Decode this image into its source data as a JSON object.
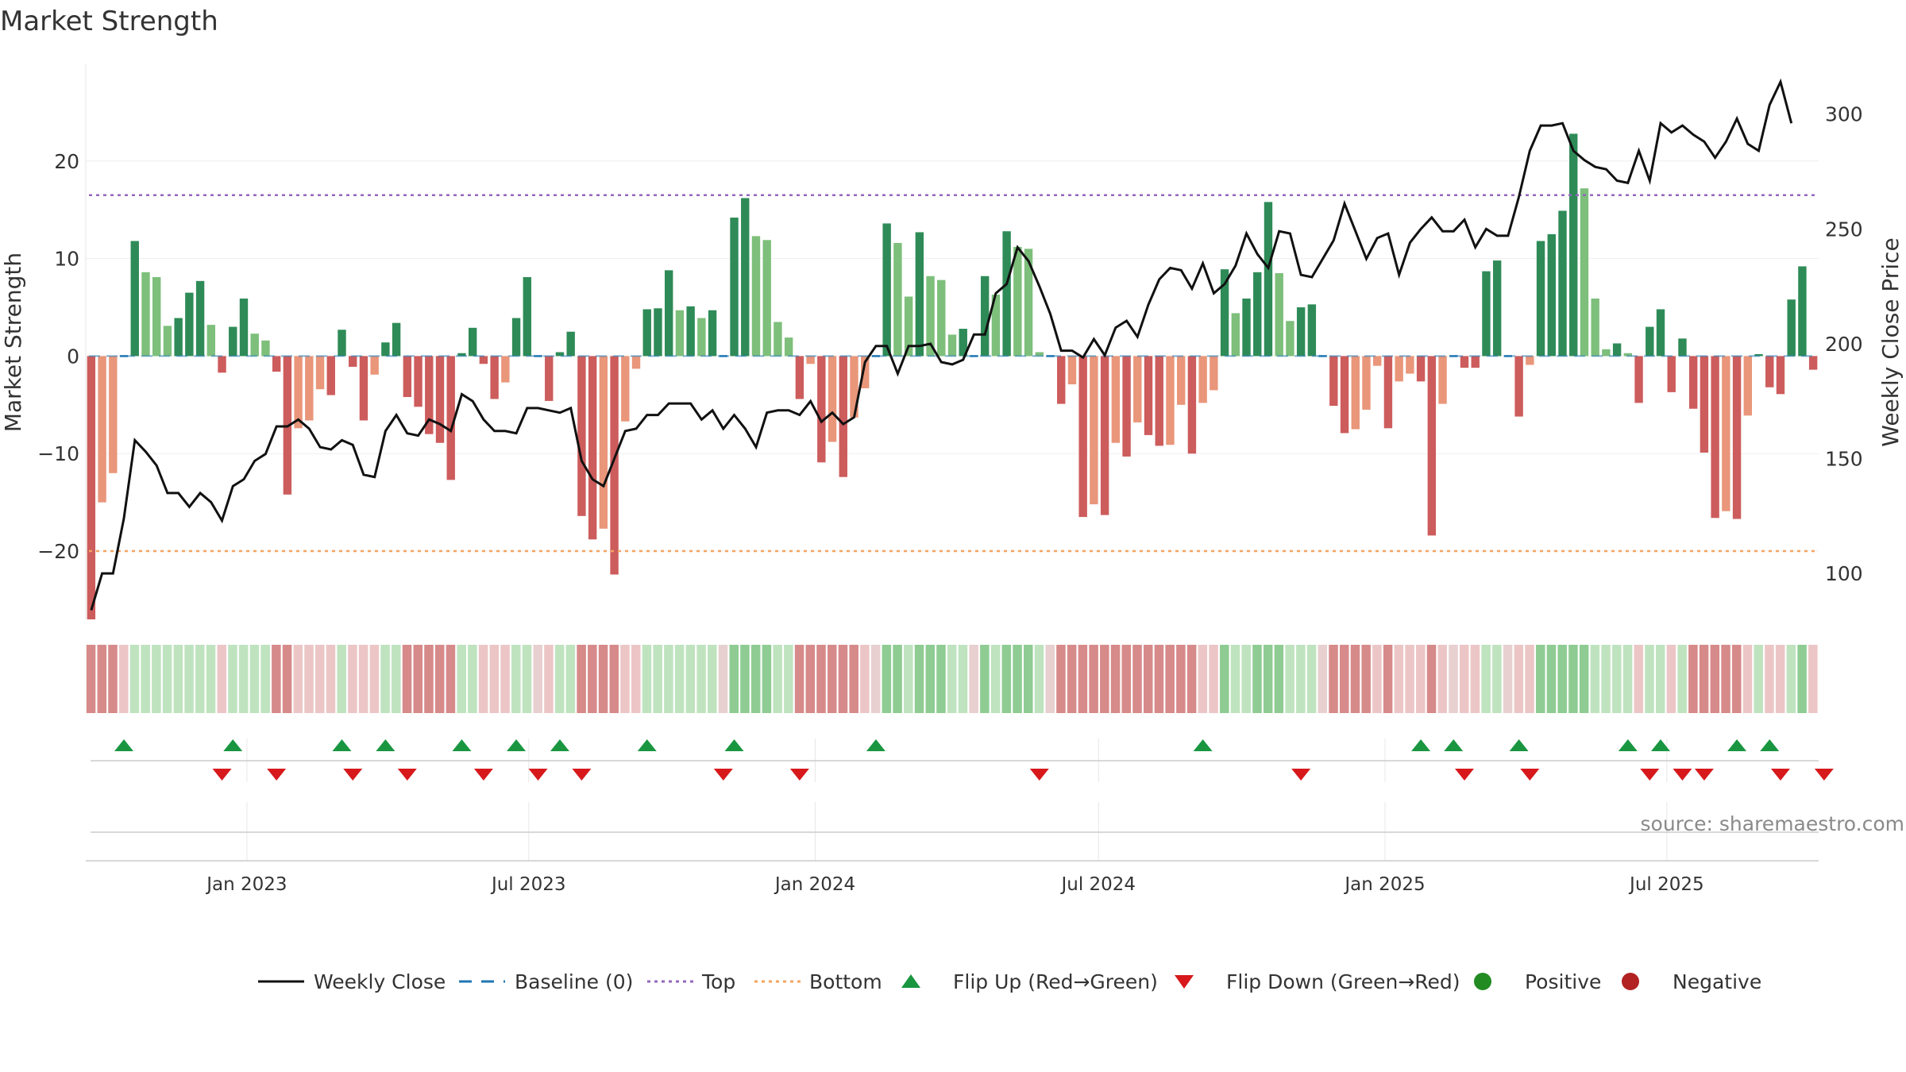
{
  "title": "Market Strength",
  "source": "source: sharemaestro.com",
  "colors": {
    "pos_strong": "#2e8b57",
    "pos_light": "#7dbf7b",
    "neg_strong": "#cd5c5c",
    "neg_light": "#e9967a",
    "price_line": "#111111",
    "baseline": "#1f77b4",
    "top": "#9467bd",
    "bottom": "#f4a460",
    "flip_up": "#1a9641",
    "flip_down": "#d7191c",
    "positive": "#228b22",
    "negative": "#b22222"
  },
  "chart_data": {
    "type": "bar",
    "title": "Market Strength",
    "ylabel": "Market Strength",
    "y2label": "Weekly Close Price",
    "ylim": [
      -27,
      30
    ],
    "y2lim": [
      80,
      322
    ],
    "yticks": [
      -20,
      -10,
      0,
      10,
      20
    ],
    "y2ticks": [
      100,
      150,
      200,
      250,
      300
    ],
    "x_start": "2022-09-23",
    "x_step_days": 7,
    "xticks": [
      {
        "date": "2023-01-01",
        "label": "Jan 2023"
      },
      {
        "date": "2023-07-01",
        "label": "Jul 2023"
      },
      {
        "date": "2024-01-01",
        "label": "Jan 2024"
      },
      {
        "date": "2024-07-01",
        "label": "Jul 2024"
      },
      {
        "date": "2025-01-01",
        "label": "Jan 2025"
      },
      {
        "date": "2025-07-01",
        "label": "Jul 2025"
      }
    ],
    "top_line": 16.5,
    "bottom_line": -20,
    "strength": [
      -27,
      -15,
      -12,
      0,
      11.8,
      8.6,
      8.1,
      3.1,
      3.9,
      6.5,
      7.7,
      3.2,
      -1.7,
      3,
      5.9,
      2.3,
      1.6,
      -1.6,
      -14.2,
      -7.4,
      -6.6,
      -3.4,
      -4,
      2.7,
      -1.1,
      -6.6,
      -1.9,
      1.4,
      3.4,
      -4.2,
      -5.2,
      -8,
      -8.9,
      -12.7,
      0.3,
      2.9,
      -0.8,
      -4.4,
      -2.7,
      3.9,
      8.1,
      0,
      -4.6,
      0.4,
      2.5,
      -16.4,
      -18.8,
      -17.7,
      -22.4,
      -6.7,
      -1.3,
      4.8,
      4.9,
      8.8,
      4.7,
      5.1,
      3.9,
      4.7,
      0,
      14.2,
      16.2,
      12.3,
      11.9,
      3.5,
      1.9,
      -4.4,
      -0.8,
      -10.9,
      -8.8,
      -12.4,
      -6.3,
      -3.3,
      0,
      13.6,
      11.6,
      6.1,
      12.7,
      8.2,
      7.8,
      2.2,
      2.8,
      0,
      8.2,
      6.3,
      12.8,
      11.2,
      11,
      0.4,
      0,
      -4.9,
      -2.9,
      -16.5,
      -15.2,
      -16.3,
      -8.9,
      -10.3,
      -6.8,
      -8.1,
      -9.2,
      -9.1,
      -5,
      -10,
      -4.8,
      -3.5,
      8.9,
      4.4,
      5.9,
      8.6,
      15.8,
      8.5,
      3.6,
      5,
      5.3,
      0,
      -5.1,
      -7.9,
      -7.5,
      -5.5,
      -1,
      -7.4,
      -2.6,
      -1.8,
      -2.6,
      -18.4,
      -4.9,
      0,
      -1.2,
      -1.2,
      8.7,
      9.8,
      0,
      -6.2,
      -0.9,
      11.8,
      12.5,
      14.9,
      22.8,
      17.2,
      5.9,
      0.7,
      1.3,
      0.3,
      -4.8,
      3,
      4.8,
      -3.7,
      1.8,
      -5.4,
      -9.9,
      -16.6,
      -15.9,
      -16.7,
      -6.1,
      0.2,
      -3.2,
      -3.9,
      5.8,
      9.2,
      -1.4
    ],
    "price": [
      84,
      100,
      100,
      124,
      158,
      153,
      147,
      135,
      135,
      129,
      135,
      131,
      123,
      138,
      141,
      149,
      152,
      164,
      164,
      167,
      163,
      155,
      154,
      158,
      156,
      143,
      142,
      162,
      169,
      161,
      160,
      167,
      165,
      162,
      178,
      175,
      167,
      162,
      162,
      161,
      172,
      172,
      171,
      170,
      172,
      149,
      141,
      138,
      150,
      162,
      163,
      169,
      169,
      174,
      174,
      174,
      167,
      171,
      163,
      169,
      163,
      155,
      170,
      171,
      171,
      169,
      175,
      166,
      170,
      165,
      168,
      192,
      199,
      199,
      187,
      199,
      199,
      200,
      192,
      191,
      193,
      204,
      204,
      222,
      226,
      242,
      236,
      225,
      213,
      197,
      197,
      194,
      202,
      195,
      207,
      210,
      203,
      217,
      228,
      233,
      232,
      224,
      235,
      222,
      226,
      234,
      248,
      239,
      233,
      249,
      248,
      230,
      229,
      237,
      245,
      261,
      249,
      237,
      246,
      248,
      230,
      244,
      250,
      255,
      249,
      249,
      254,
      242,
      250,
      247,
      247,
      264,
      284,
      295,
      295,
      296,
      284,
      280,
      277,
      276,
      271,
      270,
      284,
      271,
      296,
      292,
      295,
      291,
      288,
      281,
      288,
      298,
      287,
      284,
      304,
      314,
      296
    ],
    "regime_codes": [
      2,
      2,
      2,
      1,
      3,
      3,
      3,
      3,
      3,
      3,
      3,
      3,
      1,
      3,
      3,
      3,
      3,
      2,
      2,
      1,
      1,
      1,
      1,
      3,
      1,
      1,
      1,
      3,
      3,
      2,
      2,
      2,
      2,
      2,
      3,
      3,
      1,
      1,
      1,
      3,
      3,
      0,
      1,
      3,
      3,
      2,
      2,
      2,
      2,
      1,
      1,
      3,
      3,
      3,
      3,
      3,
      3,
      3,
      0,
      4,
      4,
      4,
      4,
      3,
      3,
      2,
      2,
      2,
      2,
      2,
      2,
      1,
      0,
      4,
      4,
      3,
      4,
      4,
      4,
      3,
      3,
      0,
      4,
      3,
      4,
      4,
      4,
      3,
      0,
      2,
      2,
      2,
      2,
      2,
      2,
      2,
      2,
      2,
      2,
      2,
      2,
      2,
      1,
      1,
      4,
      3,
      3,
      4,
      4,
      4,
      3,
      3,
      3,
      0,
      2,
      2,
      2,
      2,
      1,
      2,
      1,
      1,
      1,
      2,
      1,
      0,
      1,
      1,
      3,
      3,
      0,
      1,
      1,
      4,
      4,
      4,
      4,
      4,
      3,
      3,
      3,
      3,
      1,
      3,
      3,
      1,
      3,
      2,
      2,
      2,
      2,
      2,
      1,
      3,
      1,
      1,
      3,
      4,
      1
    ],
    "flip_up_index": [
      3,
      13,
      23,
      27,
      34,
      39,
      43,
      51,
      59,
      72,
      102,
      122,
      125,
      131,
      141,
      144,
      151,
      154
    ],
    "flip_down_index": [
      12,
      17,
      24,
      29,
      36,
      41,
      45,
      58,
      65,
      87,
      111,
      126,
      132,
      143,
      146,
      148,
      155,
      159
    ],
    "legend": [
      "Weekly Close",
      "Baseline (0)",
      "Top",
      "Bottom",
      "Flip Up (Red→Green)",
      "Flip Down (Green→Red)",
      "Positive",
      "Negative"
    ]
  }
}
